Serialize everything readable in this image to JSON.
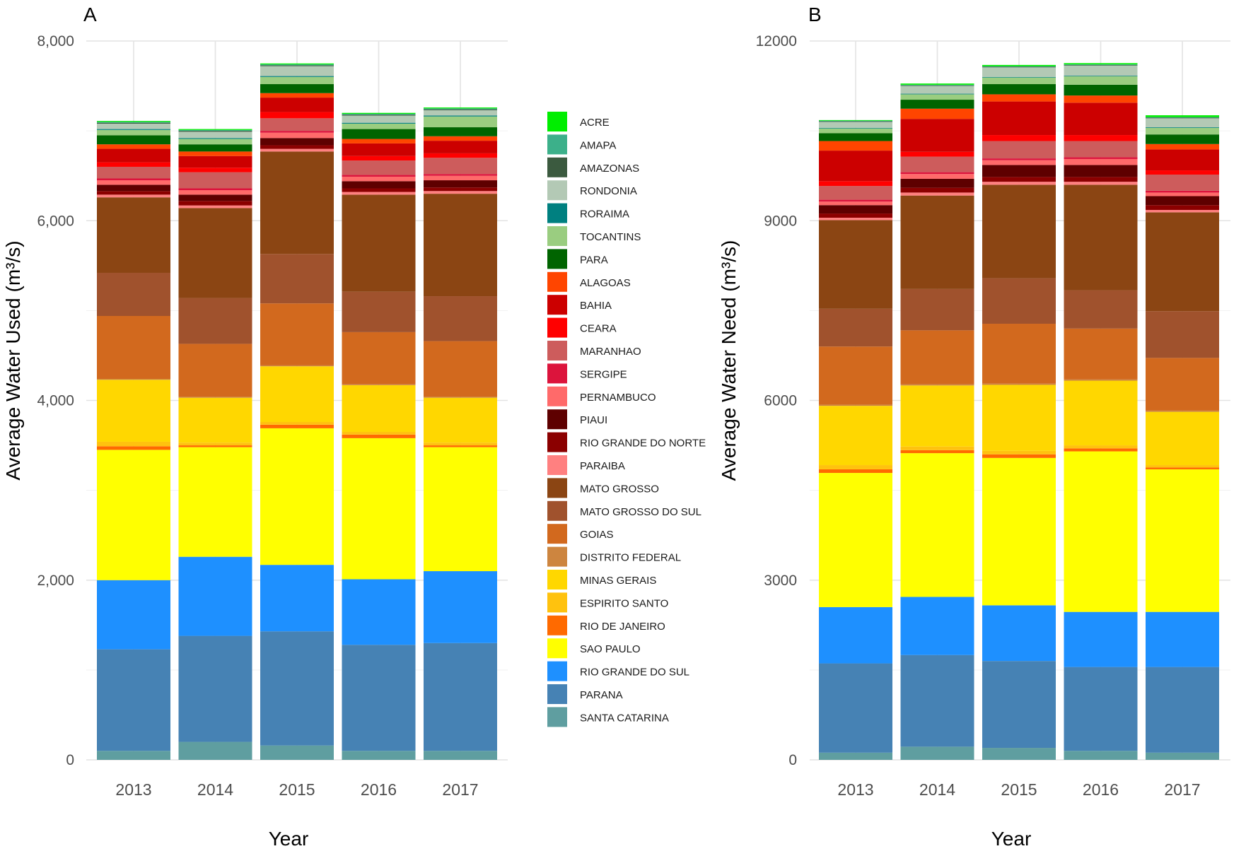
{
  "chart_data": [
    {
      "type": "bar",
      "stacked": true,
      "panel_label": "A",
      "xlabel": "Year",
      "ylabel": "Average Water Used (m³/s)",
      "ylim": [
        0,
        8000
      ],
      "yticks": [
        0,
        2000,
        4000,
        6000,
        8000
      ],
      "yticklabels": [
        "0",
        "2,000",
        "4,000",
        "6,000",
        "8,000"
      ],
      "grid": true,
      "categories": [
        "2013",
        "2014",
        "2015",
        "2016",
        "2017"
      ],
      "series": [
        {
          "name": "SANTA CATARINA",
          "values": [
            100,
            200,
            160,
            100,
            100
          ]
        },
        {
          "name": "PARANA",
          "values": [
            1130,
            1180,
            1270,
            1180,
            1200
          ]
        },
        {
          "name": "RIO GRANDE DO SUL",
          "values": [
            770,
            880,
            740,
            730,
            800
          ]
        },
        {
          "name": "SAO PAULO",
          "values": [
            1450,
            1220,
            1520,
            1570,
            1380
          ]
        },
        {
          "name": "RIO DE JANEIRO",
          "values": [
            40,
            20,
            40,
            40,
            20
          ]
        },
        {
          "name": "ESPIRITO SANTO",
          "values": [
            50,
            30,
            30,
            30,
            30
          ]
        },
        {
          "name": "MINAS GERAIS",
          "values": [
            690,
            500,
            620,
            520,
            500
          ]
        },
        {
          "name": "DISTRITO FEDERAL",
          "values": [
            10,
            10,
            10,
            10,
            10
          ]
        },
        {
          "name": "GOIAS",
          "values": [
            700,
            590,
            690,
            580,
            620
          ]
        },
        {
          "name": "MATO GROSSO DO SUL",
          "values": [
            480,
            510,
            550,
            450,
            500
          ]
        },
        {
          "name": "MATO GROSSO",
          "values": [
            840,
            1000,
            1140,
            1080,
            1140
          ]
        },
        {
          "name": "PARAIBA",
          "values": [
            30,
            30,
            30,
            30,
            30
          ]
        },
        {
          "name": "RIO GRANDE DO NORTE",
          "values": [
            40,
            50,
            40,
            40,
            40
          ]
        },
        {
          "name": "PIAUI",
          "values": [
            70,
            70,
            80,
            80,
            80
          ]
        },
        {
          "name": "PERNAMBUCO",
          "values": [
            50,
            50,
            60,
            50,
            50
          ]
        },
        {
          "name": "SERGIPE",
          "values": [
            20,
            20,
            20,
            20,
            20
          ]
        },
        {
          "name": "MARANHAO",
          "values": [
            130,
            180,
            140,
            160,
            180
          ]
        },
        {
          "name": "CEARA",
          "values": [
            50,
            50,
            70,
            50,
            50
          ]
        },
        {
          "name": "BAHIA",
          "values": [
            150,
            130,
            160,
            140,
            140
          ]
        },
        {
          "name": "ALAGOAS",
          "values": [
            50,
            50,
            50,
            50,
            50
          ]
        },
        {
          "name": "PARA",
          "values": [
            100,
            80,
            100,
            110,
            100
          ]
        },
        {
          "name": "TOCANTINS",
          "values": [
            60,
            60,
            80,
            60,
            120
          ]
        },
        {
          "name": "RORAIMA",
          "values": [
            10,
            10,
            10,
            10,
            10
          ]
        },
        {
          "name": "RONDONIA",
          "values": [
            60,
            70,
            110,
            80,
            60
          ]
        },
        {
          "name": "AMAZONAS",
          "values": [
            10,
            10,
            10,
            10,
            10
          ]
        },
        {
          "name": "AMAPA",
          "values": [
            10,
            10,
            10,
            10,
            10
          ]
        },
        {
          "name": "ACRE",
          "values": [
            10,
            10,
            10,
            10,
            10
          ]
        }
      ]
    },
    {
      "type": "bar",
      "stacked": true,
      "panel_label": "B",
      "xlabel": "Year",
      "ylabel": "Average Water Need (m³/s)",
      "ylim": [
        0,
        12000
      ],
      "yticks": [
        0,
        3000,
        6000,
        9000,
        12000
      ],
      "yticklabels": [
        "0",
        "3000",
        "6000",
        "9000",
        "12000"
      ],
      "grid": true,
      "categories": [
        "2013",
        "2014",
        "2015",
        "2016",
        "2017"
      ],
      "series": [
        {
          "name": "SANTA CATARINA",
          "values": [
            120,
            220,
            200,
            150,
            120
          ]
        },
        {
          "name": "PARANA",
          "values": [
            1490,
            1530,
            1450,
            1400,
            1430
          ]
        },
        {
          "name": "RIO GRANDE DO SUL",
          "values": [
            940,
            970,
            930,
            920,
            920
          ]
        },
        {
          "name": "SAO PAULO",
          "values": [
            2240,
            2400,
            2460,
            2680,
            2380
          ]
        },
        {
          "name": "RIO DE JANEIRO",
          "values": [
            60,
            50,
            60,
            50,
            30
          ]
        },
        {
          "name": "ESPIRITO SANTO",
          "values": [
            70,
            60,
            60,
            50,
            40
          ]
        },
        {
          "name": "MINAS GERAIS",
          "values": [
            990,
            1020,
            1100,
            1080,
            890
          ]
        },
        {
          "name": "DISTRITO FEDERAL",
          "values": [
            20,
            20,
            20,
            20,
            20
          ]
        },
        {
          "name": "GOIAS",
          "values": [
            970,
            900,
            1000,
            850,
            880
          ]
        },
        {
          "name": "MATO GROSSO DO SUL",
          "values": [
            630,
            690,
            760,
            640,
            780
          ]
        },
        {
          "name": "MATO GROSSO",
          "values": [
            1480,
            1560,
            1560,
            1760,
            1650
          ]
        },
        {
          "name": "PARAIBA",
          "values": [
            40,
            50,
            50,
            50,
            40
          ]
        },
        {
          "name": "RIO GRANDE DO NORTE",
          "values": [
            70,
            80,
            80,
            80,
            80
          ]
        },
        {
          "name": "PIAUI",
          "values": [
            140,
            150,
            200,
            200,
            150
          ]
        },
        {
          "name": "PERNAMBUCO",
          "values": [
            60,
            80,
            80,
            100,
            60
          ]
        },
        {
          "name": "SERGIPE",
          "values": [
            30,
            30,
            30,
            30,
            30
          ]
        },
        {
          "name": "MARANHAO",
          "values": [
            230,
            260,
            290,
            270,
            270
          ]
        },
        {
          "name": "CEARA",
          "values": [
            80,
            80,
            100,
            100,
            70
          ]
        },
        {
          "name": "BAHIA",
          "values": [
            510,
            550,
            560,
            540,
            350
          ]
        },
        {
          "name": "ALAGOAS",
          "values": [
            160,
            170,
            120,
            120,
            90
          ]
        },
        {
          "name": "PARA",
          "values": [
            130,
            150,
            170,
            180,
            160
          ]
        },
        {
          "name": "TOCANTINS",
          "values": [
            80,
            90,
            110,
            140,
            110
          ]
        },
        {
          "name": "RORAIMA",
          "values": [
            10,
            10,
            10,
            10,
            10
          ]
        },
        {
          "name": "RONDONIA",
          "values": [
            100,
            130,
            160,
            170,
            150
          ]
        },
        {
          "name": "AMAZONAS",
          "values": [
            10,
            10,
            10,
            10,
            10
          ]
        },
        {
          "name": "AMAPA",
          "values": [
            10,
            10,
            10,
            10,
            10
          ]
        },
        {
          "name": "ACRE",
          "values": [
            10,
            20,
            20,
            20,
            30
          ]
        }
      ]
    }
  ],
  "legend": {
    "position": "right-of-panel-A",
    "items": [
      {
        "label": "ACRE",
        "color": "#00ee00"
      },
      {
        "label": "AMAPA",
        "color": "#3cb08a"
      },
      {
        "label": "AMAZONAS",
        "color": "#3b5a3f"
      },
      {
        "label": "RONDONIA",
        "color": "#b3c9b5"
      },
      {
        "label": "RORAIMA",
        "color": "#008080"
      },
      {
        "label": "TOCANTINS",
        "color": "#9acd80"
      },
      {
        "label": "PARA",
        "color": "#006400"
      },
      {
        "label": "ALAGOAS",
        "color": "#ff4500"
      },
      {
        "label": "BAHIA",
        "color": "#cc0000"
      },
      {
        "label": "CEARA",
        "color": "#ff0000"
      },
      {
        "label": "MARANHAO",
        "color": "#cd5c5c"
      },
      {
        "label": "SERGIPE",
        "color": "#dc143c"
      },
      {
        "label": "PERNAMBUCO",
        "color": "#ff6a6a"
      },
      {
        "label": "PIAUI",
        "color": "#5e0000"
      },
      {
        "label": "RIO GRANDE DO NORTE",
        "color": "#8b0000"
      },
      {
        "label": "PARAIBA",
        "color": "#ff8080"
      },
      {
        "label": "MATO GROSSO",
        "color": "#8b4513"
      },
      {
        "label": "MATO GROSSO DO SUL",
        "color": "#a0522d"
      },
      {
        "label": "GOIAS",
        "color": "#d2691e"
      },
      {
        "label": "DISTRITO FEDERAL",
        "color": "#cd853f"
      },
      {
        "label": "MINAS GERAIS",
        "color": "#ffd700"
      },
      {
        "label": "ESPIRITO SANTO",
        "color": "#ffc20e"
      },
      {
        "label": "RIO DE JANEIRO",
        "color": "#ff6a00"
      },
      {
        "label": "SAO PAULO",
        "color": "#ffff00"
      },
      {
        "label": "RIO GRANDE DO SUL",
        "color": "#1e90ff"
      },
      {
        "label": "PARANA",
        "color": "#4682b4"
      },
      {
        "label": "SANTA CATARINA",
        "color": "#5f9ea0"
      }
    ]
  }
}
